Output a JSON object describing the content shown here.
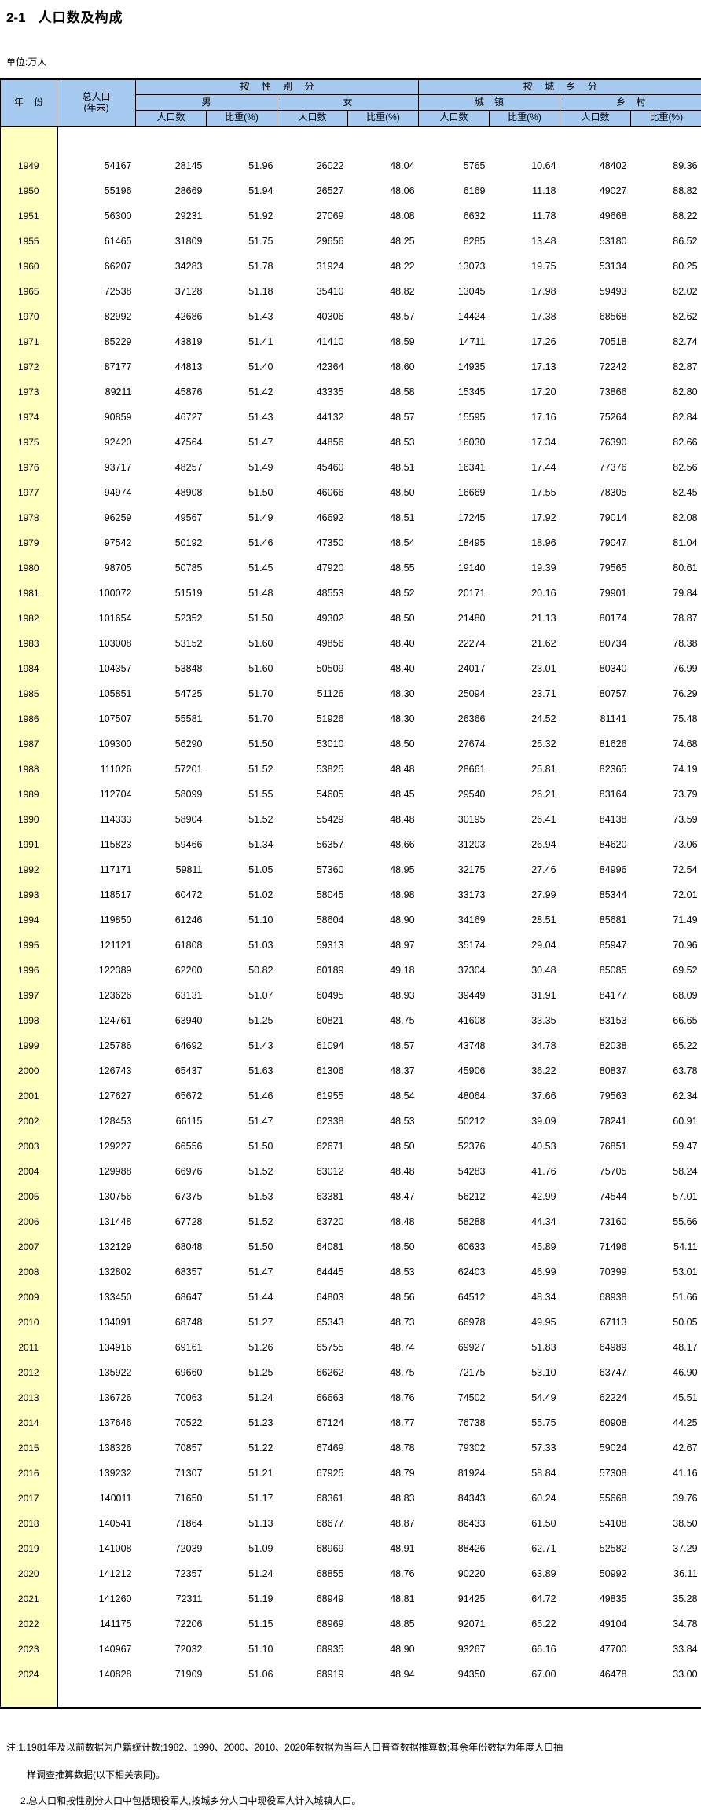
{
  "title_prefix": "2-1",
  "title_text": "人口数及构成",
  "unit_label": "单位:万人",
  "table": {
    "header": {
      "year": "年 份",
      "total_line1": "总人口",
      "total_line2": "(年末)",
      "by_sex": "按 性 别 分",
      "by_urban_rural": "按 城 乡 分",
      "male": "男",
      "female": "女",
      "urban": "城 镇",
      "rural": "乡 村",
      "population": "人口数",
      "share": "比重(%)"
    },
    "columns": [
      "year",
      "total-population",
      "male-population",
      "male-share",
      "female-population",
      "female-share",
      "urban-population",
      "urban-share",
      "rural-population",
      "rural-share"
    ],
    "rows": [
      [
        "1949",
        "54167",
        "28145",
        "51.96",
        "26022",
        "48.04",
        "5765",
        "10.64",
        "48402",
        "89.36"
      ],
      [
        "1950",
        "55196",
        "28669",
        "51.94",
        "26527",
        "48.06",
        "6169",
        "11.18",
        "49027",
        "88.82"
      ],
      [
        "1951",
        "56300",
        "29231",
        "51.92",
        "27069",
        "48.08",
        "6632",
        "11.78",
        "49668",
        "88.22"
      ],
      [
        "1955",
        "61465",
        "31809",
        "51.75",
        "29656",
        "48.25",
        "8285",
        "13.48",
        "53180",
        "86.52"
      ],
      [
        "1960",
        "66207",
        "34283",
        "51.78",
        "31924",
        "48.22",
        "13073",
        "19.75",
        "53134",
        "80.25"
      ],
      [
        "1965",
        "72538",
        "37128",
        "51.18",
        "35410",
        "48.82",
        "13045",
        "17.98",
        "59493",
        "82.02"
      ],
      [
        "1970",
        "82992",
        "42686",
        "51.43",
        "40306",
        "48.57",
        "14424",
        "17.38",
        "68568",
        "82.62"
      ],
      [
        "1971",
        "85229",
        "43819",
        "51.41",
        "41410",
        "48.59",
        "14711",
        "17.26",
        "70518",
        "82.74"
      ],
      [
        "1972",
        "87177",
        "44813",
        "51.40",
        "42364",
        "48.60",
        "14935",
        "17.13",
        "72242",
        "82.87"
      ],
      [
        "1973",
        "89211",
        "45876",
        "51.42",
        "43335",
        "48.58",
        "15345",
        "17.20",
        "73866",
        "82.80"
      ],
      [
        "1974",
        "90859",
        "46727",
        "51.43",
        "44132",
        "48.57",
        "15595",
        "17.16",
        "75264",
        "82.84"
      ],
      [
        "1975",
        "92420",
        "47564",
        "51.47",
        "44856",
        "48.53",
        "16030",
        "17.34",
        "76390",
        "82.66"
      ],
      [
        "1976",
        "93717",
        "48257",
        "51.49",
        "45460",
        "48.51",
        "16341",
        "17.44",
        "77376",
        "82.56"
      ],
      [
        "1977",
        "94974",
        "48908",
        "51.50",
        "46066",
        "48.50",
        "16669",
        "17.55",
        "78305",
        "82.45"
      ],
      [
        "1978",
        "96259",
        "49567",
        "51.49",
        "46692",
        "48.51",
        "17245",
        "17.92",
        "79014",
        "82.08"
      ],
      [
        "1979",
        "97542",
        "50192",
        "51.46",
        "47350",
        "48.54",
        "18495",
        "18.96",
        "79047",
        "81.04"
      ],
      [
        "1980",
        "98705",
        "50785",
        "51.45",
        "47920",
        "48.55",
        "19140",
        "19.39",
        "79565",
        "80.61"
      ],
      [
        "1981",
        "100072",
        "51519",
        "51.48",
        "48553",
        "48.52",
        "20171",
        "20.16",
        "79901",
        "79.84"
      ],
      [
        "1982",
        "101654",
        "52352",
        "51.50",
        "49302",
        "48.50",
        "21480",
        "21.13",
        "80174",
        "78.87"
      ],
      [
        "1983",
        "103008",
        "53152",
        "51.60",
        "49856",
        "48.40",
        "22274",
        "21.62",
        "80734",
        "78.38"
      ],
      [
        "1984",
        "104357",
        "53848",
        "51.60",
        "50509",
        "48.40",
        "24017",
        "23.01",
        "80340",
        "76.99"
      ],
      [
        "1985",
        "105851",
        "54725",
        "51.70",
        "51126",
        "48.30",
        "25094",
        "23.71",
        "80757",
        "76.29"
      ],
      [
        "1986",
        "107507",
        "55581",
        "51.70",
        "51926",
        "48.30",
        "26366",
        "24.52",
        "81141",
        "75.48"
      ],
      [
        "1987",
        "109300",
        "56290",
        "51.50",
        "53010",
        "48.50",
        "27674",
        "25.32",
        "81626",
        "74.68"
      ],
      [
        "1988",
        "111026",
        "57201",
        "51.52",
        "53825",
        "48.48",
        "28661",
        "25.81",
        "82365",
        "74.19"
      ],
      [
        "1989",
        "112704",
        "58099",
        "51.55",
        "54605",
        "48.45",
        "29540",
        "26.21",
        "83164",
        "73.79"
      ],
      [
        "1990",
        "114333",
        "58904",
        "51.52",
        "55429",
        "48.48",
        "30195",
        "26.41",
        "84138",
        "73.59"
      ],
      [
        "1991",
        "115823",
        "59466",
        "51.34",
        "56357",
        "48.66",
        "31203",
        "26.94",
        "84620",
        "73.06"
      ],
      [
        "1992",
        "117171",
        "59811",
        "51.05",
        "57360",
        "48.95",
        "32175",
        "27.46",
        "84996",
        "72.54"
      ],
      [
        "1993",
        "118517",
        "60472",
        "51.02",
        "58045",
        "48.98",
        "33173",
        "27.99",
        "85344",
        "72.01"
      ],
      [
        "1994",
        "119850",
        "61246",
        "51.10",
        "58604",
        "48.90",
        "34169",
        "28.51",
        "85681",
        "71.49"
      ],
      [
        "1995",
        "121121",
        "61808",
        "51.03",
        "59313",
        "48.97",
        "35174",
        "29.04",
        "85947",
        "70.96"
      ],
      [
        "1996",
        "122389",
        "62200",
        "50.82",
        "60189",
        "49.18",
        "37304",
        "30.48",
        "85085",
        "69.52"
      ],
      [
        "1997",
        "123626",
        "63131",
        "51.07",
        "60495",
        "48.93",
        "39449",
        "31.91",
        "84177",
        "68.09"
      ],
      [
        "1998",
        "124761",
        "63940",
        "51.25",
        "60821",
        "48.75",
        "41608",
        "33.35",
        "83153",
        "66.65"
      ],
      [
        "1999",
        "125786",
        "64692",
        "51.43",
        "61094",
        "48.57",
        "43748",
        "34.78",
        "82038",
        "65.22"
      ],
      [
        "2000",
        "126743",
        "65437",
        "51.63",
        "61306",
        "48.37",
        "45906",
        "36.22",
        "80837",
        "63.78"
      ],
      [
        "2001",
        "127627",
        "65672",
        "51.46",
        "61955",
        "48.54",
        "48064",
        "37.66",
        "79563",
        "62.34"
      ],
      [
        "2002",
        "128453",
        "66115",
        "51.47",
        "62338",
        "48.53",
        "50212",
        "39.09",
        "78241",
        "60.91"
      ],
      [
        "2003",
        "129227",
        "66556",
        "51.50",
        "62671",
        "48.50",
        "52376",
        "40.53",
        "76851",
        "59.47"
      ],
      [
        "2004",
        "129988",
        "66976",
        "51.52",
        "63012",
        "48.48",
        "54283",
        "41.76",
        "75705",
        "58.24"
      ],
      [
        "2005",
        "130756",
        "67375",
        "51.53",
        "63381",
        "48.47",
        "56212",
        "42.99",
        "74544",
        "57.01"
      ],
      [
        "2006",
        "131448",
        "67728",
        "51.52",
        "63720",
        "48.48",
        "58288",
        "44.34",
        "73160",
        "55.66"
      ],
      [
        "2007",
        "132129",
        "68048",
        "51.50",
        "64081",
        "48.50",
        "60633",
        "45.89",
        "71496",
        "54.11"
      ],
      [
        "2008",
        "132802",
        "68357",
        "51.47",
        "64445",
        "48.53",
        "62403",
        "46.99",
        "70399",
        "53.01"
      ],
      [
        "2009",
        "133450",
        "68647",
        "51.44",
        "64803",
        "48.56",
        "64512",
        "48.34",
        "68938",
        "51.66"
      ],
      [
        "2010",
        "134091",
        "68748",
        "51.27",
        "65343",
        "48.73",
        "66978",
        "49.95",
        "67113",
        "50.05"
      ],
      [
        "2011",
        "134916",
        "69161",
        "51.26",
        "65755",
        "48.74",
        "69927",
        "51.83",
        "64989",
        "48.17"
      ],
      [
        "2012",
        "135922",
        "69660",
        "51.25",
        "66262",
        "48.75",
        "72175",
        "53.10",
        "63747",
        "46.90"
      ],
      [
        "2013",
        "136726",
        "70063",
        "51.24",
        "66663",
        "48.76",
        "74502",
        "54.49",
        "62224",
        "45.51"
      ],
      [
        "2014",
        "137646",
        "70522",
        "51.23",
        "67124",
        "48.77",
        "76738",
        "55.75",
        "60908",
        "44.25"
      ],
      [
        "2015",
        "138326",
        "70857",
        "51.22",
        "67469",
        "48.78",
        "79302",
        "57.33",
        "59024",
        "42.67"
      ],
      [
        "2016",
        "139232",
        "71307",
        "51.21",
        "67925",
        "48.79",
        "81924",
        "58.84",
        "57308",
        "41.16"
      ],
      [
        "2017",
        "140011",
        "71650",
        "51.17",
        "68361",
        "48.83",
        "84343",
        "60.24",
        "55668",
        "39.76"
      ],
      [
        "2018",
        "140541",
        "71864",
        "51.13",
        "68677",
        "48.87",
        "86433",
        "61.50",
        "54108",
        "38.50"
      ],
      [
        "2019",
        "141008",
        "72039",
        "51.09",
        "68969",
        "48.91",
        "88426",
        "62.71",
        "52582",
        "37.29"
      ],
      [
        "2020",
        "141212",
        "72357",
        "51.24",
        "68855",
        "48.76",
        "90220",
        "63.89",
        "50992",
        "36.11"
      ],
      [
        "2021",
        "141260",
        "72311",
        "51.19",
        "68949",
        "48.81",
        "91425",
        "64.72",
        "49835",
        "35.28"
      ],
      [
        "2022",
        "141175",
        "72206",
        "51.15",
        "68969",
        "48.85",
        "92071",
        "65.22",
        "49104",
        "34.78"
      ],
      [
        "2023",
        "140967",
        "72032",
        "51.10",
        "68935",
        "48.90",
        "93267",
        "66.16",
        "47700",
        "33.84"
      ],
      [
        "2024",
        "140828",
        "71909",
        "51.06",
        "68919",
        "48.94",
        "94350",
        "67.00",
        "46478",
        "33.00"
      ]
    ]
  },
  "notes": {
    "line1": "注:1.1981年及以前数据为户籍统计数;1982、1990、2000、2010、2020年数据为当年人口普查数据推算数;其余年份数据为年度人口抽",
    "line2": "样调查推算数据(以下相关表同)。",
    "line3": "2.总人口和按性别分人口中包括现役军人,按城乡分人口中现役军人计入城镇人口。"
  },
  "colors": {
    "header_blue": "#a6caf0",
    "year_column_yellow": "#ffffc0",
    "border_black": "#000000"
  }
}
